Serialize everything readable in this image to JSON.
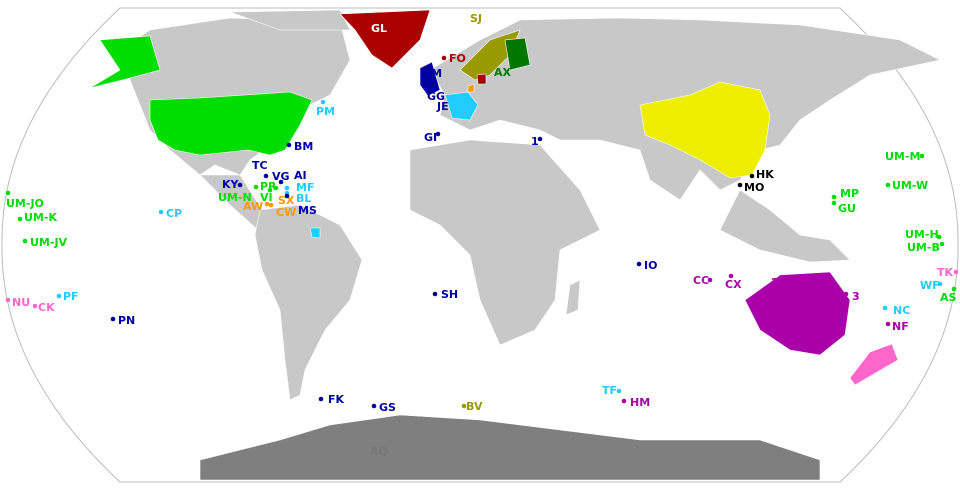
{
  "colors": {
    "land": "#c8c8c8",
    "antarctica": "#7f7f7f",
    "usa": "#00dd00",
    "uk": "#0000a0",
    "france": "#22ccff",
    "netherlands": "#ff9900",
    "denmark": "#aa0000",
    "norway": "#999900",
    "finland": "#007700",
    "china": "#eeee00",
    "australia": "#aa00aa",
    "new_zealand": "#ff66cc",
    "neutral": "#000000",
    "antarctica_label": "#777777"
  },
  "labels": [
    {
      "code": "GL",
      "group": "denmark"
    },
    {
      "code": "SJ",
      "group": "norway"
    },
    {
      "code": "FO",
      "group": "denmark"
    },
    {
      "code": "IM",
      "group": "uk"
    },
    {
      "code": "GG",
      "group": "uk"
    },
    {
      "code": "JE",
      "group": "uk"
    },
    {
      "code": "AX",
      "group": "finland"
    },
    {
      "code": "PM",
      "group": "france"
    },
    {
      "code": "BM",
      "group": "uk"
    },
    {
      "code": "GI",
      "group": "uk"
    },
    {
      "code": "1",
      "group": "uk"
    },
    {
      "code": "TC",
      "group": "uk"
    },
    {
      "code": "VG",
      "group": "uk"
    },
    {
      "code": "AI",
      "group": "uk"
    },
    {
      "code": "KY",
      "group": "uk"
    },
    {
      "code": "PR",
      "group": "usa"
    },
    {
      "code": "MF",
      "group": "france"
    },
    {
      "code": "UM-N",
      "group": "usa"
    },
    {
      "code": "VI",
      "group": "usa"
    },
    {
      "code": "BL",
      "group": "france"
    },
    {
      "code": "SX",
      "group": "netherlands"
    },
    {
      "code": "AW",
      "group": "netherlands"
    },
    {
      "code": "CW",
      "group": "netherlands"
    },
    {
      "code": "MS",
      "group": "uk"
    },
    {
      "code": "UM-JO",
      "group": "usa"
    },
    {
      "code": "UM-K",
      "group": "usa"
    },
    {
      "code": "UM-JV",
      "group": "usa"
    },
    {
      "code": "CP",
      "group": "france"
    },
    {
      "code": "NU",
      "group": "new_zealand"
    },
    {
      "code": "CK",
      "group": "new_zealand"
    },
    {
      "code": "PF",
      "group": "france"
    },
    {
      "code": "PN",
      "group": "uk"
    },
    {
      "code": "HK",
      "group": "neutral"
    },
    {
      "code": "MO",
      "group": "neutral"
    },
    {
      "code": "UM-M",
      "group": "usa"
    },
    {
      "code": "UM-W",
      "group": "usa"
    },
    {
      "code": "MP",
      "group": "usa"
    },
    {
      "code": "GU",
      "group": "usa"
    },
    {
      "code": "UM-H",
      "group": "usa"
    },
    {
      "code": "UM-B",
      "group": "usa"
    },
    {
      "code": "IO",
      "group": "uk"
    },
    {
      "code": "CC",
      "group": "australia"
    },
    {
      "code": "CX",
      "group": "australia"
    },
    {
      "code": "2",
      "group": "australia"
    },
    {
      "code": "3",
      "group": "australia"
    },
    {
      "code": "TK",
      "group": "new_zealand"
    },
    {
      "code": "WF",
      "group": "france"
    },
    {
      "code": "AS",
      "group": "usa"
    },
    {
      "code": "NC",
      "group": "france"
    },
    {
      "code": "NF",
      "group": "australia"
    },
    {
      "code": "SH",
      "group": "uk"
    },
    {
      "code": "FK",
      "group": "uk"
    },
    {
      "code": "GS",
      "group": "uk"
    },
    {
      "code": "BV",
      "group": "norway"
    },
    {
      "code": "TF",
      "group": "france"
    },
    {
      "code": "HM",
      "group": "australia"
    },
    {
      "code": "AQ",
      "group": "antarctica_label"
    }
  ]
}
